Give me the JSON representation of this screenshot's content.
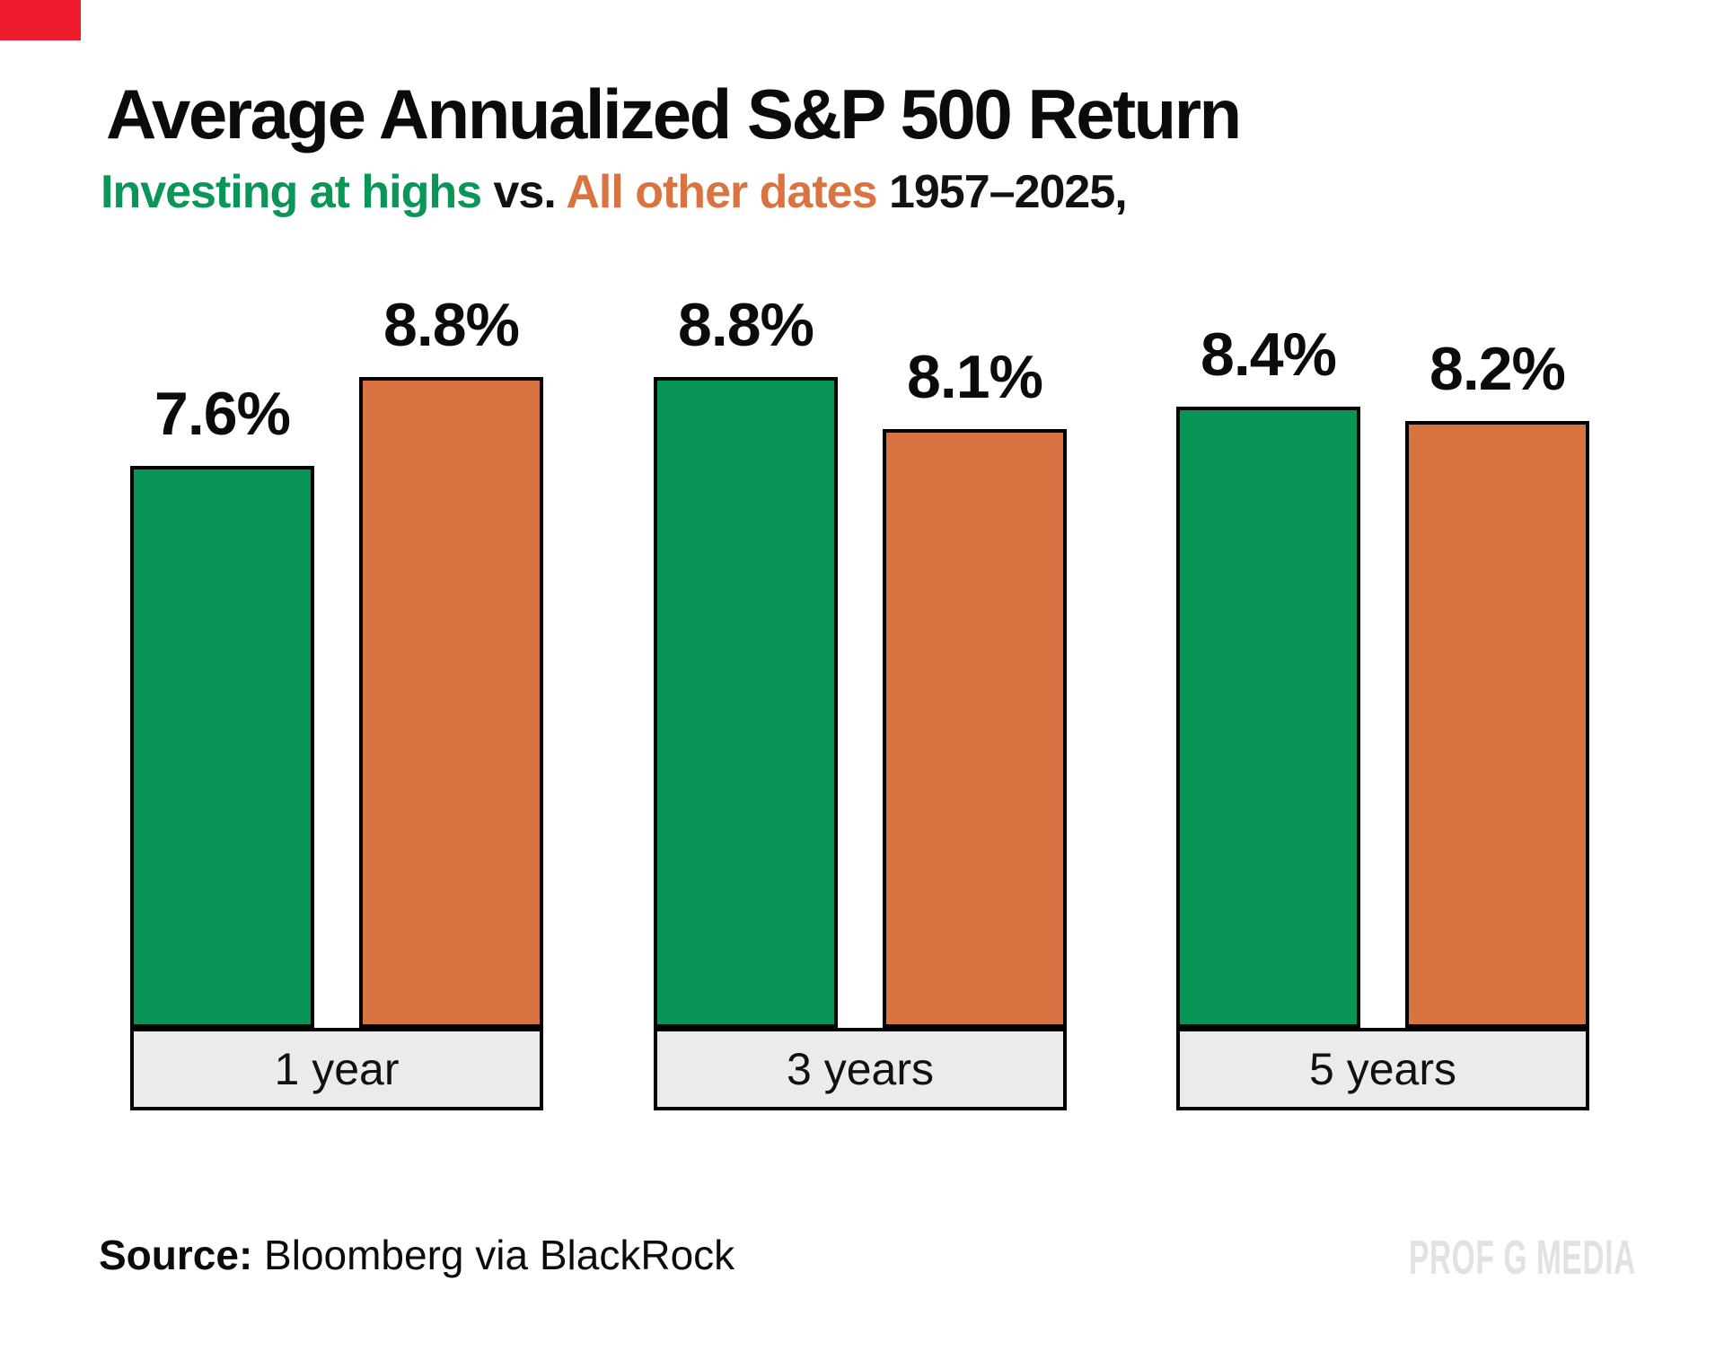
{
  "page": {
    "background": "#ffffff"
  },
  "corner_marker": {
    "color": "#ee1c2c"
  },
  "header": {
    "title": "Average Annualized S&P 500 Return",
    "subtitle": [
      {
        "text": "Investing at highs",
        "color": "#0a9657"
      },
      {
        "text": " vs. ",
        "color": "#111111"
      },
      {
        "text": "All other dates",
        "color": "#d97440"
      },
      {
        "text": " 1957–2025,",
        "color": "#111111"
      }
    ]
  },
  "chart_data": {
    "type": "bar",
    "title": "Average Annualized S&P 500 Return",
    "subtitle": "Investing at highs vs. All other dates 1957–2025,",
    "categories": [
      "1 year",
      "3 years",
      "5 years"
    ],
    "series": [
      {
        "name": "Investing at highs",
        "color": "#089455",
        "values": [
          7.6,
          8.8,
          8.4
        ],
        "labels": [
          "7.6%",
          "8.8%",
          "8.4%"
        ]
      },
      {
        "name": "All other dates",
        "color": "#d97342",
        "values": [
          8.8,
          8.1,
          8.2
        ],
        "labels": [
          "8.8%",
          "8.1%",
          "8.2%"
        ]
      }
    ],
    "value_suffix": "%",
    "ylim": [
      0,
      9.3
    ],
    "grid": false,
    "legend": "inline-in-subtitle",
    "category_box_fill": "#ebebeb",
    "bar_border_color": "#000000"
  },
  "footer": {
    "source_label": "Source:",
    "source_text": " Bloomberg via BlackRock",
    "watermark": "PROF G MEDIA"
  }
}
